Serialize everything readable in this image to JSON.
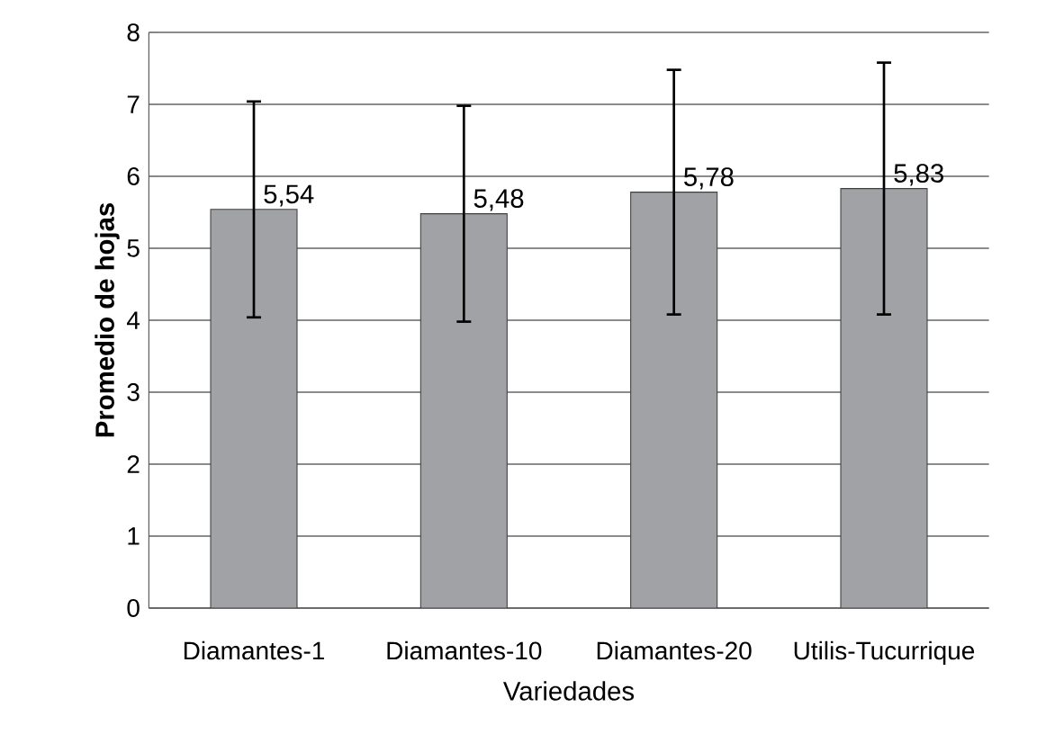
{
  "chart_data": {
    "type": "bar",
    "xlabel": "Variedades",
    "ylabel": "Promedio de hojas",
    "categories": [
      "Diamantes-1",
      "Diamantes-10",
      "Diamantes-20",
      "Utilis-Tucurrique"
    ],
    "values": [
      5.54,
      5.48,
      5.78,
      5.83
    ],
    "errors": [
      1.5,
      1.5,
      1.7,
      1.75
    ],
    "value_labels": [
      "5,54",
      "5,48",
      "5,78",
      "5,83"
    ],
    "color": "#a0a2a5",
    "ylim": [
      0,
      8
    ],
    "yticks": [
      0,
      1,
      2,
      3,
      4,
      5,
      6,
      7,
      8
    ],
    "grid": "y"
  }
}
